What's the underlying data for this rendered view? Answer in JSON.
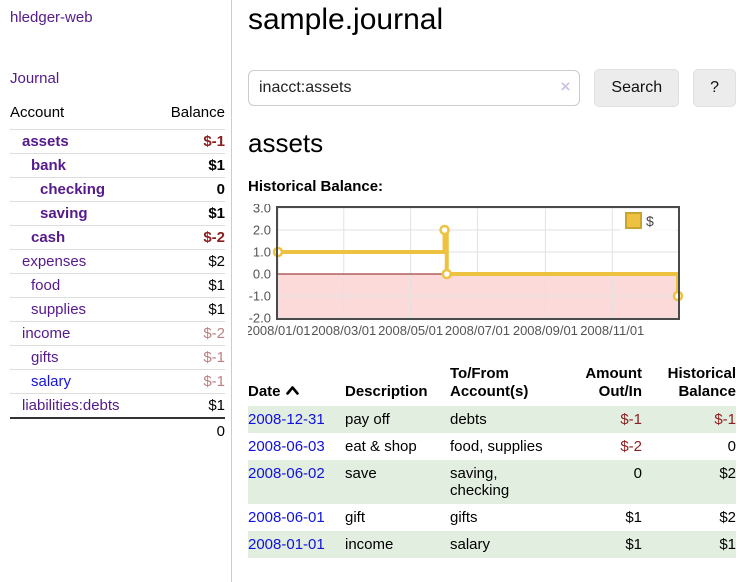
{
  "app": {
    "title": "hledger-web"
  },
  "sidebar": {
    "journal_link": "Journal",
    "accounts_table": {
      "headers": {
        "account": "Account",
        "balance": "Balance"
      },
      "rows": [
        {
          "name": "assets",
          "depth": 1,
          "balance": "$-1",
          "bold": true,
          "balance_color": "negative"
        },
        {
          "name": "bank",
          "depth": 2,
          "balance": "$1",
          "bold": true,
          "balance_color": "normal"
        },
        {
          "name": "checking",
          "depth": 3,
          "balance": "0",
          "bold": true,
          "balance_color": "normal"
        },
        {
          "name": "saving",
          "depth": 3,
          "balance": "$1",
          "bold": true,
          "balance_color": "normal"
        },
        {
          "name": "cash",
          "depth": 2,
          "balance": "$-2",
          "bold": true,
          "balance_color": "negative"
        },
        {
          "name": "expenses",
          "depth": 1,
          "balance": "$2",
          "bold": false,
          "balance_color": "normal"
        },
        {
          "name": "food",
          "depth": 2,
          "balance": "$1",
          "bold": false,
          "balance_color": "normal"
        },
        {
          "name": "supplies",
          "depth": 2,
          "balance": "$1",
          "bold": false,
          "balance_color": "normal"
        },
        {
          "name": "income",
          "depth": 1,
          "balance": "$-2",
          "bold": false,
          "balance_color": "negative-dim"
        },
        {
          "name": "gifts",
          "depth": 2,
          "balance": "$-1",
          "bold": false,
          "balance_color": "negative-dim"
        },
        {
          "name": "salary",
          "depth": 2,
          "balance": "$-1",
          "bold": false,
          "balance_color": "negative-dim",
          "link_color": "blue"
        },
        {
          "name": "liabilities:debts",
          "depth": 1,
          "balance": "$1",
          "bold": false,
          "balance_color": "normal"
        }
      ],
      "total": "0"
    }
  },
  "header": {
    "title": "sample.journal"
  },
  "search": {
    "value": "inacct:assets",
    "clear_icon": "×",
    "button": "Search",
    "help_button": "?"
  },
  "account_page": {
    "heading": "assets",
    "chart_label": "Historical Balance:"
  },
  "chart_data": {
    "type": "line",
    "step": true,
    "title": "Historical Balance",
    "series": [
      {
        "name": "$",
        "color": "#edc240",
        "points": [
          [
            "2008-01-01",
            1
          ],
          [
            "2008-06-01",
            2
          ],
          [
            "2008-06-03",
            0
          ],
          [
            "2008-12-31",
            -1
          ]
        ]
      }
    ],
    "x_ticks": [
      "2008/01/01",
      "2008/03/01",
      "2008/05/01",
      "2008/07/01",
      "2008/09/01",
      "2008/11/01"
    ],
    "y_ticks": [
      "3.0",
      "2.0",
      "1.0",
      "0.0",
      "-1.0",
      "-2.0"
    ],
    "xlim": [
      "2008-01-01",
      "2008-12-31"
    ],
    "ylim": [
      -2,
      3
    ],
    "grid": true,
    "legend": "$",
    "legend_position": "top-right",
    "negative_region_color": "#fcdada",
    "zero_line_color": "#8b1a1a"
  },
  "table": {
    "headers": [
      {
        "lines": [
          "Date"
        ],
        "align": "left",
        "sort": "asc"
      },
      {
        "lines": [
          "Description"
        ],
        "align": "left"
      },
      {
        "lines": [
          "To/From",
          "Account(s)"
        ],
        "align": "left"
      },
      {
        "lines": [
          "Amount",
          "Out/In"
        ],
        "align": "right"
      },
      {
        "lines": [
          "Historical",
          "Balance"
        ],
        "align": "right"
      }
    ],
    "rows": [
      {
        "date": "2008-12-31",
        "description": "pay off",
        "accounts": "debts",
        "amount": "$-1",
        "amount_negative": true,
        "balance": "$-1",
        "balance_negative": true,
        "shaded": true
      },
      {
        "date": "2008-06-03",
        "description": "eat & shop",
        "accounts": "food, supplies",
        "amount": "$-2",
        "amount_negative": true,
        "balance": "0",
        "balance_negative": false,
        "shaded": false
      },
      {
        "date": "2008-06-02",
        "description": "save",
        "accounts": "saving,\nchecking",
        "amount": "0",
        "amount_negative": false,
        "balance": "$2",
        "balance_negative": false,
        "shaded": true
      },
      {
        "date": "2008-06-01",
        "description": "gift",
        "accounts": "gifts",
        "amount": "$1",
        "amount_negative": false,
        "balance": "$2",
        "balance_negative": false,
        "shaded": false
      },
      {
        "date": "2008-01-01",
        "description": "income",
        "accounts": "salary",
        "amount": "$1",
        "amount_negative": false,
        "balance": "$1",
        "balance_negative": false,
        "shaded": true
      }
    ]
  },
  "colors": {
    "link_visited": "#551a8b",
    "link_unvisited": "#1111dd",
    "negative": "#8b1e1e",
    "negative_dim": "#bd8080",
    "row_shade": "#e2eee0",
    "chart_line": "#edc240"
  }
}
